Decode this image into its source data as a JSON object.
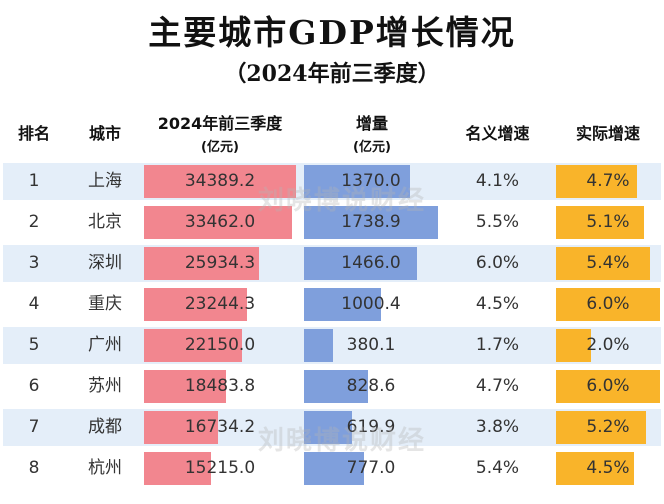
{
  "title": "主要城市GDP增长情况",
  "subtitle": "（2024年前三季度）",
  "watermark": "刘晓博说财经",
  "headers": {
    "rank": "排名",
    "city": "城市",
    "gdp": "2024年前三季度",
    "gdp_unit": "(亿元)",
    "increase": "增量",
    "increase_unit": "(亿元)",
    "nominal": "名义增速",
    "real": "实际增速"
  },
  "colors": {
    "gdp_bar": "#f2868f",
    "increase_bar": "#7f9fdc",
    "real_bar": "#f9b42a",
    "row_shade": "#e4eef9"
  },
  "chart_data": {
    "type": "table",
    "title": "主要城市GDP增长情况",
    "subtitle": "（2024年前三季度）",
    "columns": [
      "排名",
      "城市",
      "2024年前三季度(亿元)",
      "增量(亿元)",
      "名义增速",
      "实际增速"
    ],
    "rows": [
      {
        "rank": "1",
        "city": "上海",
        "gdp": 34389.2,
        "gdp_text": "34389.2",
        "increase": 1370.0,
        "increase_text": "1370.0",
        "nominal": "4.1%",
        "real": 4.7,
        "real_text": "4.7%"
      },
      {
        "rank": "2",
        "city": "北京",
        "gdp": 33462.0,
        "gdp_text": "33462.0",
        "increase": 1738.9,
        "increase_text": "1738.9",
        "nominal": "5.5%",
        "real": 5.1,
        "real_text": "5.1%"
      },
      {
        "rank": "3",
        "city": "深圳",
        "gdp": 25934.3,
        "gdp_text": "25934.3",
        "increase": 1466.0,
        "increase_text": "1466.0",
        "nominal": "6.0%",
        "real": 5.4,
        "real_text": "5.4%"
      },
      {
        "rank": "4",
        "city": "重庆",
        "gdp": 23244.3,
        "gdp_text": "23244.3",
        "increase": 1000.4,
        "increase_text": "1000.4",
        "nominal": "4.5%",
        "real": 6.0,
        "real_text": "6.0%"
      },
      {
        "rank": "5",
        "city": "广州",
        "gdp": 22150.0,
        "gdp_text": "22150.0",
        "increase": 380.1,
        "increase_text": "380.1",
        "nominal": "1.7%",
        "real": 2.0,
        "real_text": "2.0%"
      },
      {
        "rank": "6",
        "city": "苏州",
        "gdp": 18483.8,
        "gdp_text": "18483.8",
        "increase": 828.6,
        "increase_text": "828.6",
        "nominal": "4.7%",
        "real": 6.0,
        "real_text": "6.0%"
      },
      {
        "rank": "7",
        "city": "成都",
        "gdp": 16734.2,
        "gdp_text": "16734.2",
        "increase": 619.9,
        "increase_text": "619.9",
        "nominal": "3.8%",
        "real": 5.2,
        "real_text": "5.2%"
      },
      {
        "rank": "8",
        "city": "杭州",
        "gdp": 15215.0,
        "gdp_text": "15215.0",
        "increase": 777.0,
        "increase_text": "777.0",
        "nominal": "5.4%",
        "real": 4.5,
        "real_text": "4.5%"
      }
    ]
  }
}
